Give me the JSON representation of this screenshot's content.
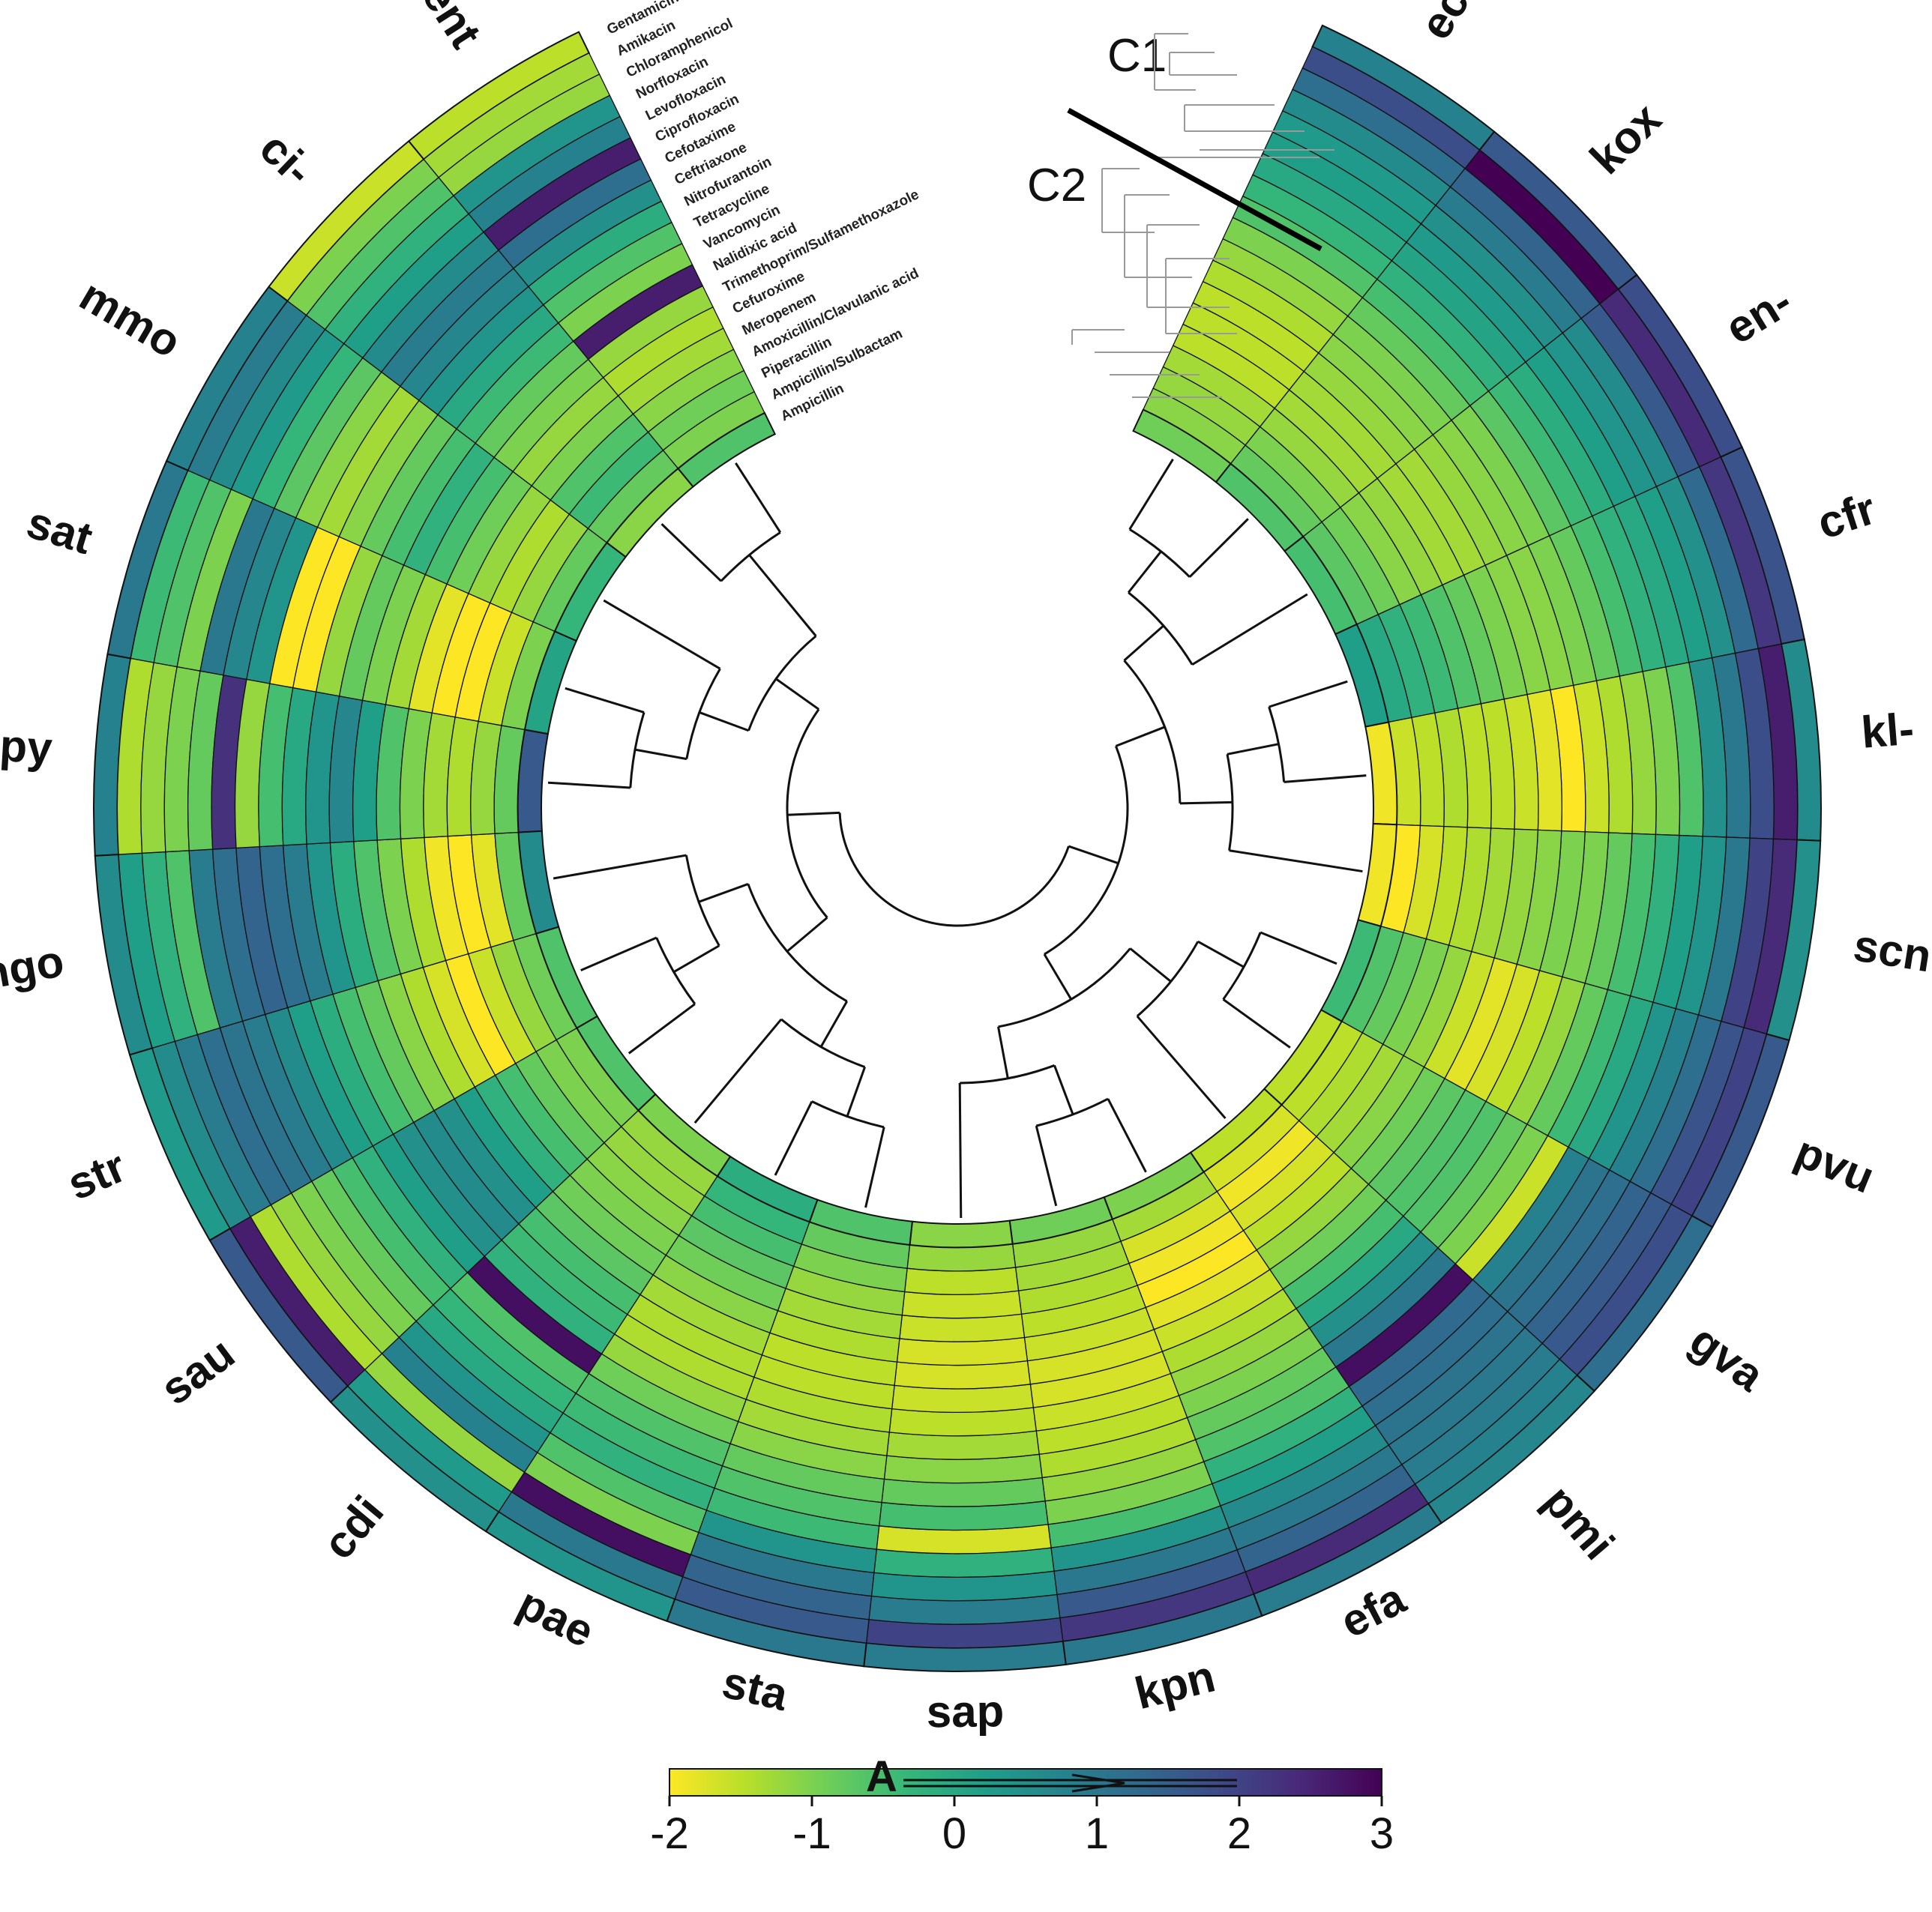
{
  "chart_data": {
    "type": "heatmap",
    "layout": "circular",
    "title": "",
    "species": [
      "eco",
      "kox",
      "en-",
      "cfr",
      "kl-",
      "scn",
      "pvu",
      "gva",
      "pmi",
      "efa",
      "kpn",
      "sap",
      "sta",
      "pae",
      "cdi",
      "sau",
      "str",
      "ngo",
      "spy",
      "sat",
      "mmo",
      "ci-",
      "ent"
    ],
    "antibiotics": [
      "Gentamicin",
      "Amikacin",
      "Chloramphenicol",
      "Norfloxacin",
      "Levofloxacin",
      "Ciprofloxacin",
      "Cefotaxime",
      "Ceftriaxone",
      "Nitrofurantoin",
      "Tetracycline",
      "Vancomycin",
      "Nalidixic acid",
      "Trimethoprim/Sulfamethoxazole",
      "Cefuroxime",
      "Meropenem",
      "Amoxicillin/Clavulanic acid",
      "Piperacillin",
      "Ampicillin/Sulbactam",
      "Ampicillin"
    ],
    "values": [
      [
        0.8,
        1.8,
        1.2,
        0.6,
        0.3,
        0.2,
        0.0,
        -0.3,
        -0.6,
        -1.0,
        -1.2,
        -1.4,
        -1.5,
        -1.5,
        -1.5,
        -1.3,
        -1.2,
        -1.1,
        -0.9
      ],
      [
        1.6,
        3.0,
        1.4,
        0.9,
        0.5,
        0.3,
        0.1,
        -0.2,
        -0.5,
        -0.8,
        -1.0,
        -1.1,
        -1.2,
        -1.3,
        -1.3,
        -1.2,
        -1.0,
        -0.8,
        -0.6
      ],
      [
        1.8,
        2.4,
        1.6,
        0.6,
        0.4,
        0.2,
        -0.1,
        -0.4,
        -0.7,
        -1.0,
        -1.1,
        -1.2,
        -1.3,
        -1.3,
        -1.2,
        -1.1,
        -0.9,
        -0.7,
        -0.5
      ],
      [
        1.7,
        2.2,
        1.3,
        0.5,
        0.2,
        0.0,
        -0.2,
        -0.5,
        -0.8,
        -1.0,
        -1.1,
        -1.1,
        -1.0,
        -0.8,
        -0.6,
        -0.4,
        -0.2,
        0.0,
        0.2
      ],
      [
        0.6,
        2.6,
        1.8,
        1.0,
        0.5,
        -0.6,
        -1.0,
        -1.2,
        -1.4,
        -1.6,
        -2.0,
        -1.8,
        -1.6,
        -1.5,
        -1.5,
        -1.4,
        -1.5,
        -1.6,
        -1.9
      ],
      [
        0.5,
        2.4,
        2.0,
        1.0,
        0.4,
        0.2,
        -0.2,
        -0.5,
        -0.8,
        -1.0,
        -1.0,
        -1.1,
        -1.2,
        -1.3,
        -1.4,
        -1.5,
        -1.7,
        -2.0,
        -1.9
      ],
      [
        1.6,
        2.0,
        1.7,
        1.2,
        0.8,
        0.4,
        0.0,
        -0.4,
        -0.8,
        -1.2,
        -1.5,
        -1.7,
        -1.8,
        -1.6,
        -1.2,
        -1.0,
        -0.8,
        -0.6,
        -0.4
      ],
      [
        1.2,
        1.8,
        1.6,
        1.4,
        1.2,
        1.1,
        0.8,
        -1.6,
        -1.0,
        -0.8,
        -0.6,
        -0.6,
        -0.7,
        -0.9,
        -1.1,
        -1.3,
        -1.4,
        -1.5,
        -1.5
      ],
      [
        0.7,
        0.8,
        0.9,
        1.0,
        1.1,
        1.2,
        1.3,
        2.8,
        1.0,
        0.5,
        0.0,
        -0.5,
        -0.9,
        -1.2,
        -1.5,
        -1.7,
        -1.9,
        -1.7,
        -1.5
      ],
      [
        0.9,
        2.4,
        1.4,
        1.0,
        0.6,
        0.2,
        -0.2,
        -0.6,
        -0.8,
        -1.0,
        -1.2,
        -1.4,
        -1.6,
        -1.8,
        -2.0,
        -1.9,
        -1.7,
        -1.3,
        -1.0
      ],
      [
        1.0,
        2.2,
        1.6,
        1.0,
        0.4,
        -0.5,
        -1.0,
        -1.2,
        -1.4,
        -1.5,
        -1.6,
        -1.7,
        -1.7,
        -1.6,
        -1.5,
        -1.4,
        -1.3,
        -1.2,
        -0.9
      ],
      [
        0.9,
        2.0,
        0.9,
        0.4,
        -0.2,
        -1.7,
        -0.5,
        -0.8,
        -1.1,
        -1.3,
        -1.5,
        -1.6,
        -1.7,
        -1.7,
        -1.6,
        -1.6,
        -1.5,
        -1.2,
        -1.1
      ],
      [
        1.0,
        1.6,
        1.4,
        1.0,
        0.4,
        -0.4,
        -0.6,
        -0.8,
        -1.1,
        -1.3,
        -1.4,
        -1.5,
        -1.5,
        -1.4,
        -1.3,
        -1.2,
        -1.0,
        -0.8,
        -0.6
      ],
      [
        0.4,
        1.0,
        2.8,
        -1.0,
        -0.6,
        -0.2,
        -0.4,
        -0.6,
        -0.9,
        -1.2,
        -1.4,
        -1.4,
        -1.3,
        -1.1,
        -0.9,
        -0.7,
        -0.5,
        -0.3,
        -0.1
      ],
      [
        0.5,
        0.3,
        -1.2,
        0.8,
        0.4,
        0.0,
        -0.3,
        -0.6,
        2.8,
        -0.2,
        -0.4,
        -0.5,
        -0.7,
        -0.9,
        -1.0,
        -1.1,
        -1.2,
        -1.2,
        -1.0
      ],
      [
        1.6,
        2.6,
        -1.4,
        -1.2,
        -1.0,
        -0.8,
        -0.5,
        -0.2,
        0.2,
        0.5,
        0.6,
        0.5,
        0.2,
        -0.2,
        -0.5,
        -0.8,
        -1.0,
        -1.0,
        -0.6
      ],
      [
        0.3,
        0.6,
        0.9,
        1.2,
        1.1,
        0.9,
        0.6,
        0.2,
        -0.1,
        -0.5,
        -0.8,
        -1.1,
        -1.4,
        -1.7,
        -2.0,
        -1.6,
        -1.2,
        -0.9,
        -0.6
      ],
      [
        0.6,
        0.2,
        -0.2,
        -0.6,
        0.9,
        1.2,
        1.4,
        1.2,
        0.9,
        0.4,
        -0.1,
        -0.6,
        -1.0,
        -1.4,
        -1.9,
        -2.1,
        -1.8,
        -0.8,
        0.6
      ],
      [
        0.8,
        -1.4,
        -1.2,
        -1.0,
        -0.8,
        2.3,
        -1.2,
        -0.5,
        0.0,
        0.4,
        0.7,
        0.2,
        -0.6,
        -1.0,
        -1.3,
        -1.4,
        -1.2,
        -0.8,
        1.6
      ],
      [
        1.0,
        -0.4,
        -0.6,
        -1.0,
        1.0,
        0.7,
        0.4,
        -2.1,
        -2.1,
        -1.2,
        -0.8,
        -1.0,
        -1.3,
        -1.8,
        -2.1,
        -2.0,
        -1.6,
        -1.0,
        0.1
      ],
      [
        0.8,
        0.9,
        0.6,
        0.3,
        -0.3,
        -0.7,
        -1.1,
        -1.3,
        -1.1,
        -0.8,
        -0.5,
        -0.2,
        -0.5,
        -0.9,
        -1.2,
        -1.4,
        -1.2,
        -0.8,
        -0.3
      ],
      [
        -1.6,
        -1.0,
        -0.6,
        -0.2,
        0.2,
        0.6,
        0.9,
        0.7,
        0.4,
        0.0,
        -0.4,
        -0.8,
        -1.0,
        -1.2,
        -1.0,
        -0.6,
        -0.4,
        -0.8,
        -1.1
      ],
      [
        -1.5,
        -1.3,
        -1.2,
        0.4,
        0.8,
        2.6,
        1.2,
        0.5,
        -0.1,
        -0.6,
        -1.0,
        2.6,
        -1.2,
        -1.4,
        -1.3,
        -1.1,
        -0.9,
        -1.0,
        -0.6
      ]
    ],
    "clusters": [
      "C1",
      "C2"
    ],
    "legend": {
      "label": "A",
      "min": -2,
      "max": 3,
      "ticks": [
        "-2",
        "-1",
        "0",
        "1",
        "2",
        "3"
      ],
      "colormap": "viridis",
      "colors": [
        "#fde725",
        "#b5de2b",
        "#6ece58",
        "#35b779",
        "#1f9e89",
        "#26828e",
        "#31688e",
        "#3e4989",
        "#482878",
        "#440154"
      ]
    }
  }
}
